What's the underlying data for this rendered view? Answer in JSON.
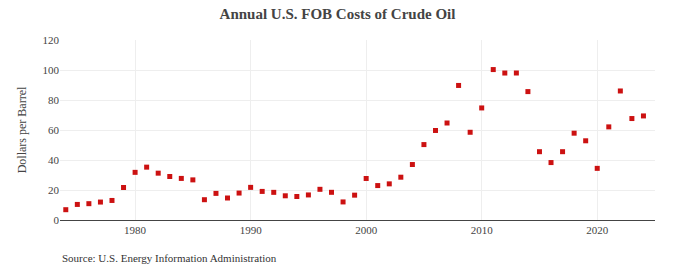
{
  "chart_data": {
    "type": "scatter",
    "title": "Annual U.S. FOB Costs of Crude Oil",
    "ylabel": "Dollars per Barrel",
    "annotations": [
      "Source: U.S. Energy Information Administration"
    ],
    "x": [
      1974,
      1975,
      1976,
      1977,
      1978,
      1979,
      1980,
      1981,
      1982,
      1983,
      1984,
      1985,
      1986,
      1987,
      1988,
      1989,
      1990,
      1991,
      1992,
      1993,
      1994,
      1995,
      1996,
      1997,
      1998,
      1999,
      2000,
      2001,
      2002,
      2003,
      2004,
      2005,
      2006,
      2007,
      2008,
      2009,
      2010,
      2011,
      2012,
      2013,
      2014,
      2015,
      2016,
      2017,
      2018,
      2019,
      2020,
      2021,
      2022,
      2023,
      2024
    ],
    "values": [
      6.87,
      10.38,
      10.89,
      11.96,
      13.03,
      21.67,
      31.77,
      35.24,
      31.22,
      28.99,
      27.72,
      26.75,
      13.53,
      17.75,
      14.67,
      17.97,
      21.76,
      19.06,
      18.43,
      16.14,
      15.66,
      16.71,
      20.46,
      18.46,
      12.05,
      16.56,
      27.69,
      22.95,
      24.1,
      28.53,
      36.98,
      50.28,
      59.69,
      64.67,
      89.7,
      58.49,
      74.71,
      100.29,
      97.98,
      98.0,
      85.6,
      45.54,
      38.29,
      45.54,
      57.88,
      52.81,
      34.43,
      62.08,
      86.01,
      67.64,
      69.38
    ],
    "color": "#cc1111",
    "marker": "square",
    "xlim": [
      1973.5,
      2025
    ],
    "xticks": [
      1980,
      1990,
      2000,
      2010,
      2020
    ],
    "ylim": [
      0,
      120
    ],
    "yticks": [
      0,
      20,
      40,
      60,
      80,
      100,
      120
    ],
    "grid": true
  }
}
